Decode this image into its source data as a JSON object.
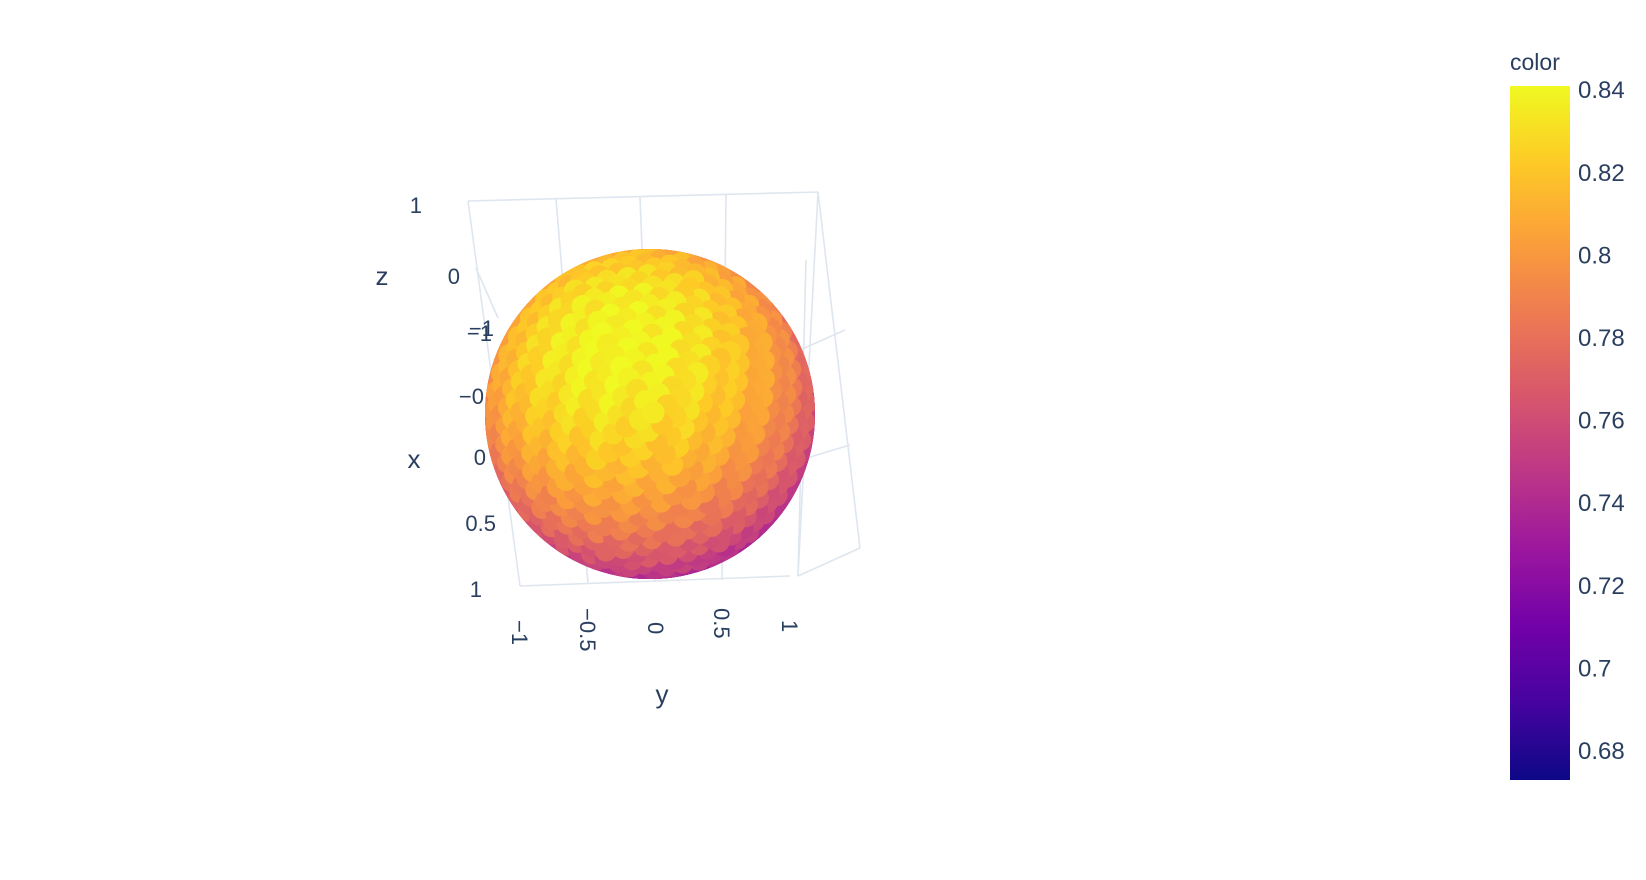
{
  "chart_data": {
    "type": "scatter3d",
    "title": "",
    "axes": {
      "x": {
        "title": "x",
        "ticks": [
          "−0",
          "0",
          "0.5",
          "1"
        ],
        "range": [
          -1,
          1
        ]
      },
      "y": {
        "title": "y",
        "ticks": [
          "−1",
          "−0.5",
          "0",
          "0.5",
          "1"
        ],
        "range": [
          -1,
          1
        ]
      },
      "z": {
        "title": "z",
        "ticks": [
          "1",
          "0",
          "−1"
        ],
        "range": [
          -1,
          1
        ]
      },
      "overlap_tick": "−1"
    },
    "grid": true,
    "series": [
      {
        "marker_shape": "sphere of points",
        "points_description": "points uniformly on the unit sphere x²+y²+z²=1",
        "color_range": [
          0.67,
          0.84
        ]
      }
    ],
    "colorbar": {
      "title": "color",
      "ticks": [
        "0.84",
        "0.82",
        "0.8",
        "0.78",
        "0.76",
        "0.74",
        "0.72",
        "0.7",
        "0.68"
      ],
      "range": [
        0.673,
        0.841
      ],
      "colorscale": [
        "#0d0887",
        "#46039f",
        "#7201a8",
        "#9c179e",
        "#bd3786",
        "#d8576b",
        "#ed7953",
        "#fb9f3a",
        "#fdca26",
        "#f0f921"
      ]
    }
  }
}
